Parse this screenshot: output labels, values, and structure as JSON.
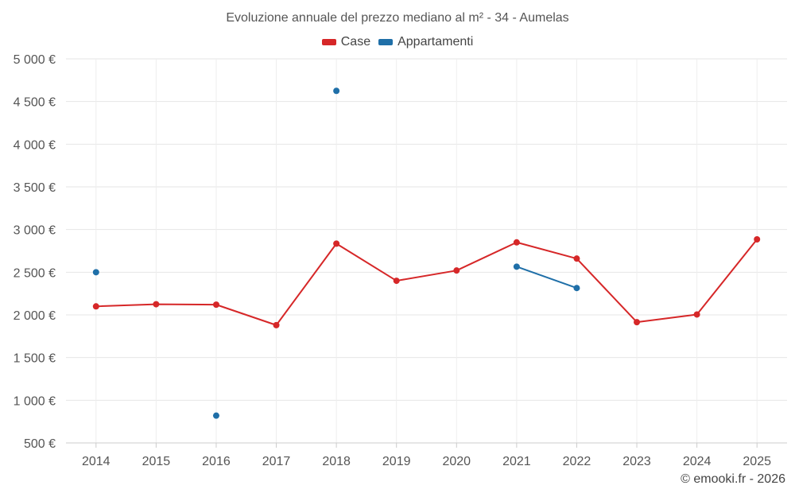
{
  "credit": "© emooki.fr - 2026",
  "chart_data": {
    "type": "line",
    "title": "Evoluzione annuale del prezzo mediano al m² - 34 - Aumelas",
    "xlabel": "",
    "ylabel": "",
    "categories": [
      "2014",
      "2015",
      "2016",
      "2017",
      "2018",
      "2019",
      "2020",
      "2021",
      "2022",
      "2023",
      "2024",
      "2025"
    ],
    "ylim": [
      500,
      5000
    ],
    "yticks": [
      500,
      1000,
      1500,
      2000,
      2500,
      3000,
      3500,
      4000,
      4500,
      5000
    ],
    "ytick_labels": [
      "500 €",
      "1 000 €",
      "1 500 €",
      "2 000 €",
      "2 500 €",
      "3 000 €",
      "3 500 €",
      "4 000 €",
      "4 500 €",
      "5 000 €"
    ],
    "grid": true,
    "legend_position": "top-center",
    "series": [
      {
        "name": "Case",
        "color": "#d62728",
        "values": [
          2100,
          2125,
          2120,
          1880,
          2835,
          2400,
          2520,
          2850,
          2660,
          1915,
          2005,
          2885
        ]
      },
      {
        "name": "Appartamenti",
        "color": "#1f6fa8",
        "values": [
          2500,
          null,
          820,
          null,
          4625,
          null,
          null,
          2565,
          2315,
          null,
          null,
          null
        ]
      }
    ]
  }
}
